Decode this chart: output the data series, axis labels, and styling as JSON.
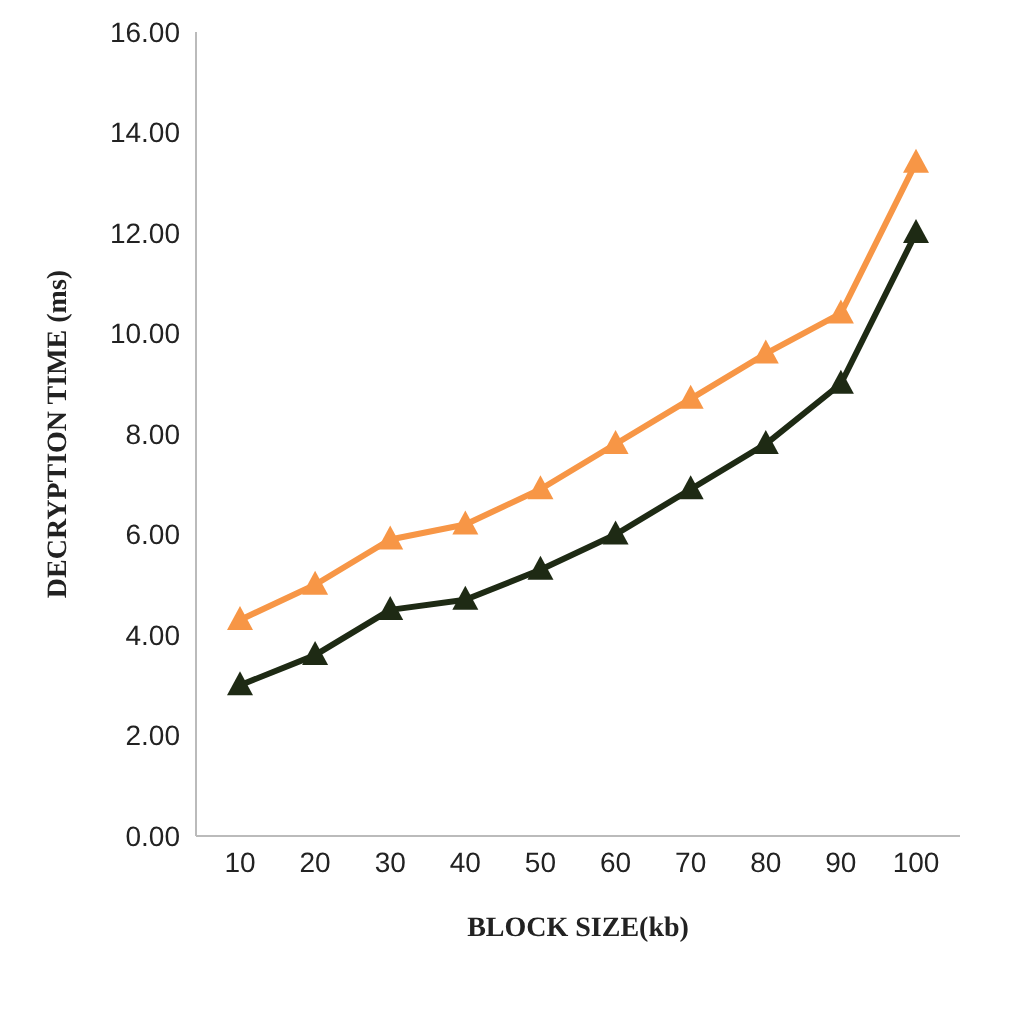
{
  "chart_data": {
    "type": "line",
    "xlabel": "BLOCK SIZE(kb)",
    "ylabel": "DECRYPTION TIME  (ms)",
    "categories": [
      "10",
      "20",
      "30",
      "40",
      "50",
      "60",
      "70",
      "80",
      "90",
      "100"
    ],
    "series": [
      {
        "color": "#f79646",
        "values": [
          4.3,
          5.0,
          5.9,
          6.2,
          6.9,
          7.8,
          8.7,
          9.6,
          10.4,
          13.4
        ]
      },
      {
        "color": "#1e2a14",
        "values": [
          3.0,
          3.6,
          4.5,
          4.7,
          5.3,
          6.0,
          6.9,
          7.8,
          9.0,
          12.0
        ]
      }
    ],
    "ylim": [
      0,
      16
    ],
    "yticks": [
      {
        "value": 0,
        "label": "0.00"
      },
      {
        "value": 2,
        "label": "2.00"
      },
      {
        "value": 4,
        "label": "4.00"
      },
      {
        "value": 6,
        "label": "6.00"
      },
      {
        "value": 8,
        "label": "8.00"
      },
      {
        "value": 10,
        "label": "10.00"
      },
      {
        "value": 12,
        "label": "12.00"
      },
      {
        "value": 14,
        "label": "14.00"
      },
      {
        "value": 16,
        "label": "16.00"
      }
    ],
    "grid": false,
    "legend": false,
    "marker": "triangle",
    "line_style": "solid"
  }
}
